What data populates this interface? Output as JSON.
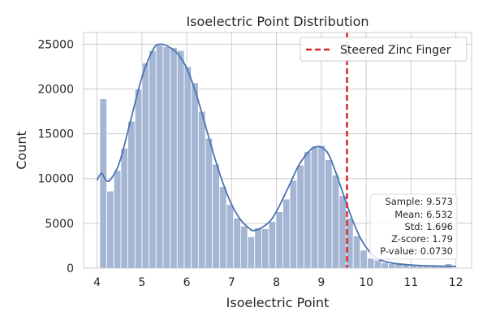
{
  "chart_data": {
    "type": "bar",
    "title": "Isoelectric Point Distribution",
    "xlabel": "Isoelectric Point",
    "ylabel": "Count",
    "xlim": [
      3.7,
      12.35
    ],
    "ylim": [
      0,
      26300
    ],
    "xticks": [
      4,
      5,
      6,
      7,
      8,
      9,
      10,
      11,
      12
    ],
    "yticks": [
      0,
      5000,
      10000,
      15000,
      20000,
      25000
    ],
    "grid": true,
    "bin_edges": [
      4.06,
      4.217,
      4.374,
      4.531,
      4.688,
      4.845,
      5.002,
      5.159,
      5.316,
      5.473,
      5.63,
      5.787,
      5.944,
      6.101,
      6.258,
      6.415,
      6.572,
      6.729,
      6.886,
      7.043,
      7.2,
      7.357,
      7.514,
      7.671,
      7.828,
      7.985,
      8.142,
      8.299,
      8.456,
      8.613,
      8.77,
      8.927,
      9.084,
      9.241,
      9.398,
      9.555,
      9.712,
      9.869,
      10.026,
      10.183,
      10.34,
      10.497,
      10.654,
      10.811,
      10.968,
      11.125,
      11.282,
      11.439,
      11.596,
      11.753,
      11.91
    ],
    "counts": [
      18900,
      8600,
      10900,
      13400,
      16400,
      20000,
      22900,
      24300,
      24900,
      24700,
      24600,
      24300,
      22500,
      20700,
      17500,
      14500,
      11600,
      9100,
      7100,
      5600,
      4700,
      3500,
      4500,
      4400,
      5200,
      6300,
      7700,
      9800,
      11500,
      13000,
      13600,
      13700,
      12100,
      10400,
      8100,
      5600,
      3600,
      2000,
      1100,
      900,
      600,
      500,
      450,
      400,
      350,
      300,
      300,
      250,
      300,
      500
    ],
    "kde": {
      "x": [
        4.0,
        4.1,
        4.2,
        4.3,
        4.5,
        4.75,
        5.0,
        5.25,
        5.4,
        5.6,
        5.8,
        6.0,
        6.2,
        6.4,
        6.6,
        6.8,
        7.0,
        7.2,
        7.4,
        7.5,
        7.7,
        7.9,
        8.1,
        8.3,
        8.5,
        8.7,
        8.85,
        9.0,
        9.15,
        9.3,
        9.5,
        9.7,
        9.9,
        10.1,
        10.3,
        10.6,
        11.0,
        11.5,
        12.0
      ],
      "y": [
        9800,
        10600,
        9800,
        9900,
        11800,
        16500,
        21300,
        24400,
        25000,
        24700,
        23900,
        22300,
        19600,
        16200,
        12700,
        9600,
        7100,
        5400,
        4400,
        4200,
        4600,
        5500,
        7300,
        9400,
        11500,
        12900,
        13500,
        13500,
        12800,
        11000,
        8100,
        5300,
        3100,
        1700,
        950,
        550,
        350,
        250,
        200
      ]
    },
    "marker_line": {
      "x": 9.573,
      "color": "#d62728",
      "label": "Steered Zinc Finger"
    },
    "legend": {
      "position": "top-right",
      "entries": [
        "Steered Zinc Finger"
      ]
    },
    "stats_box": {
      "position": "bottom-right",
      "lines": [
        "Sample: 9.573",
        "Mean: 6.532",
        "Std: 1.696",
        "Z-score: 1.79",
        "P-value: 0.0730"
      ]
    },
    "colors": {
      "bar_fill": "#a4b6d4",
      "bar_edge": "#ffffff",
      "kde": "#4c72b0",
      "grid": "#cccccc",
      "axes_edge": "#cccccc"
    }
  }
}
